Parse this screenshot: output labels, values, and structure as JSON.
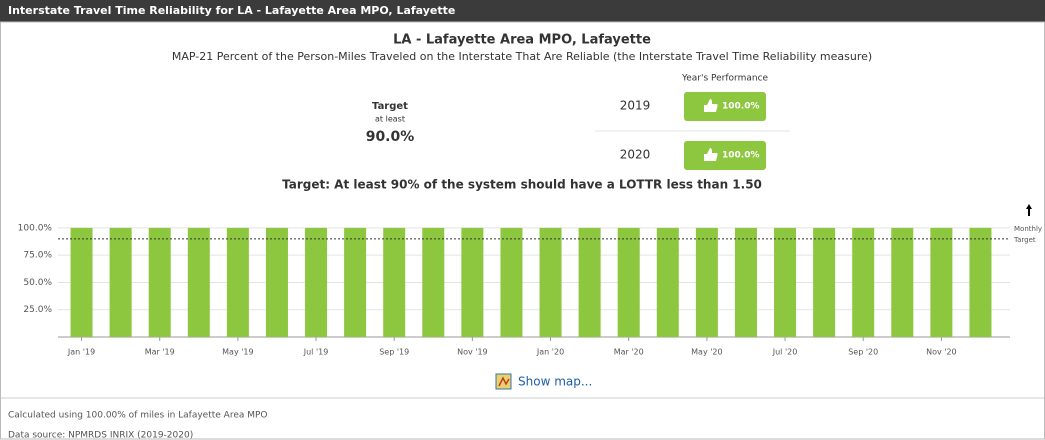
{
  "header": {
    "title": "Interstate Travel Time Reliability for LA - Lafayette Area MPO, Lafayette"
  },
  "chart_data": {
    "type": "bar",
    "title": "LA - Lafayette Area MPO, Lafayette",
    "subtitle": "MAP-21 Percent of the Person-Miles Traveled on the Interstate That Are Reliable (the Interstate Travel Time Reliability measure)",
    "performance_heading": "Year's Performance",
    "target_box": {
      "label": "Target",
      "qualifier": "at least",
      "value": "90.0%"
    },
    "performance": [
      {
        "year": "2019",
        "value": "100.0%"
      },
      {
        "year": "2020",
        "value": "100.0%"
      }
    ],
    "target_note": "Target: At least 90% of the system should have a LOTTR less than 1.50",
    "categories": [
      "Jan '19",
      null,
      "Mar '19",
      null,
      "May '19",
      null,
      "Jul '19",
      null,
      "Sep '19",
      null,
      "Nov '19",
      null,
      "Jan '20",
      null,
      "Mar '20",
      null,
      "May '20",
      null,
      "Jul '20",
      null,
      "Sep '20",
      null,
      "Nov '20",
      null
    ],
    "values": [
      100,
      100,
      100,
      100,
      100,
      100,
      100,
      100,
      100,
      100,
      100,
      100,
      100,
      100,
      100,
      100,
      100,
      100,
      100,
      100,
      100,
      100,
      100,
      100
    ],
    "color": "#8dc63f",
    "ylim": [
      0,
      110
    ],
    "yticks": [
      {
        "value": 25,
        "label": "25.0%"
      },
      {
        "value": 50,
        "label": "50.0%"
      },
      {
        "value": 75,
        "label": "75.0%"
      },
      {
        "value": 100,
        "label": "100.0%"
      }
    ],
    "grid": true,
    "target": 90,
    "target_legend": [
      "Monthly",
      "Target"
    ]
  },
  "link": "Show map...",
  "footer": {
    "calculation": "Calculated using 100.00% of miles in Lafayette Area MPO",
    "source": "Data source: NPMRDS INRIX (2019-2020)"
  }
}
